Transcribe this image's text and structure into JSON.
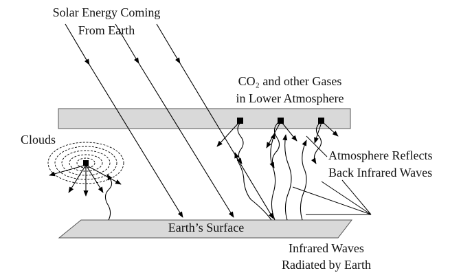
{
  "labels": {
    "solar": [
      "Solar Energy Coming",
      "From Earth"
    ],
    "gases": [
      "CO₂ and other Gases",
      "in Lower Atmosphere"
    ],
    "clouds": "Clouds",
    "reflects": [
      "Atmosphere Reflects",
      "Back Infrared Waves"
    ],
    "surface": "Earth’s Surface",
    "infrared": [
      "Infrared Waves",
      "Radiated by Earth"
    ]
  }
}
